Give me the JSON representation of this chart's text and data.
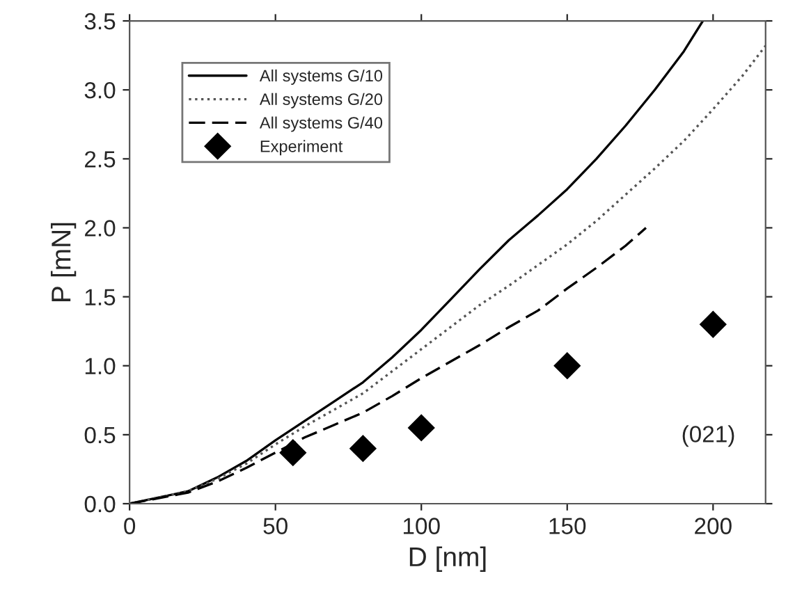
{
  "chart_data": {
    "type": "line",
    "xlabel": "D [nm]",
    "ylabel": "P [mN]",
    "xlim": [
      0,
      218
    ],
    "xticks": [
      0,
      50,
      100,
      150,
      200
    ],
    "ylim": [
      0,
      3.5
    ],
    "yticks": [
      {
        "value": 0,
        "label": "0.0"
      },
      0.5,
      {
        "value": 1,
        "label": "1.0"
      },
      1.5,
      {
        "value": 2,
        "label": "2.0"
      },
      2.5,
      {
        "value": 3,
        "label": "3.0"
      },
      3.5
    ],
    "grid": false,
    "legend": "top left",
    "annotations": [
      "(021)"
    ],
    "series": [
      {
        "name": "All systems G/10",
        "color": "#000000",
        "line_style": "solid",
        "marker": "none",
        "x": [
          0,
          20,
          30,
          40,
          50,
          60,
          70,
          80,
          90,
          100,
          110,
          120,
          130,
          140,
          150,
          160,
          170,
          180,
          190,
          196.5
        ],
        "values": [
          0,
          0.09,
          0.19,
          0.31,
          0.46,
          0.6,
          0.74,
          0.88,
          1.06,
          1.26,
          1.48,
          1.7,
          1.91,
          2.09,
          2.28,
          2.5,
          2.74,
          3.0,
          3.28,
          3.5
        ]
      },
      {
        "name": "All systems G/20",
        "color": "#555555",
        "line_style": "dotted",
        "marker": "none",
        "x": [
          0,
          20,
          30,
          40,
          50,
          60,
          70,
          80,
          90,
          100,
          110,
          120,
          130,
          140,
          150,
          160,
          170,
          180,
          190,
          200,
          210,
          218
        ],
        "values": [
          0,
          0.09,
          0.18,
          0.29,
          0.43,
          0.56,
          0.68,
          0.8,
          0.96,
          1.12,
          1.28,
          1.44,
          1.58,
          1.73,
          1.88,
          2.05,
          2.24,
          2.43,
          2.63,
          2.86,
          3.1,
          3.32
        ]
      },
      {
        "name": "All systems G/40",
        "color": "#000000",
        "line_style": "dashed",
        "marker": "none",
        "x": [
          0,
          20,
          30,
          40,
          50,
          60,
          70,
          80,
          90,
          100,
          110,
          120,
          130,
          140,
          150,
          160,
          170,
          177
        ],
        "values": [
          0,
          0.08,
          0.16,
          0.26,
          0.37,
          0.48,
          0.57,
          0.66,
          0.78,
          0.91,
          1.03,
          1.15,
          1.28,
          1.4,
          1.56,
          1.71,
          1.87,
          2.0
        ]
      },
      {
        "name": "Experiment",
        "type": "scatter",
        "color": "#000000",
        "marker": "diamond",
        "x": [
          56,
          80,
          100,
          150,
          200
        ],
        "values": [
          0.37,
          0.4,
          0.55,
          1.0,
          1.3
        ]
      }
    ]
  }
}
